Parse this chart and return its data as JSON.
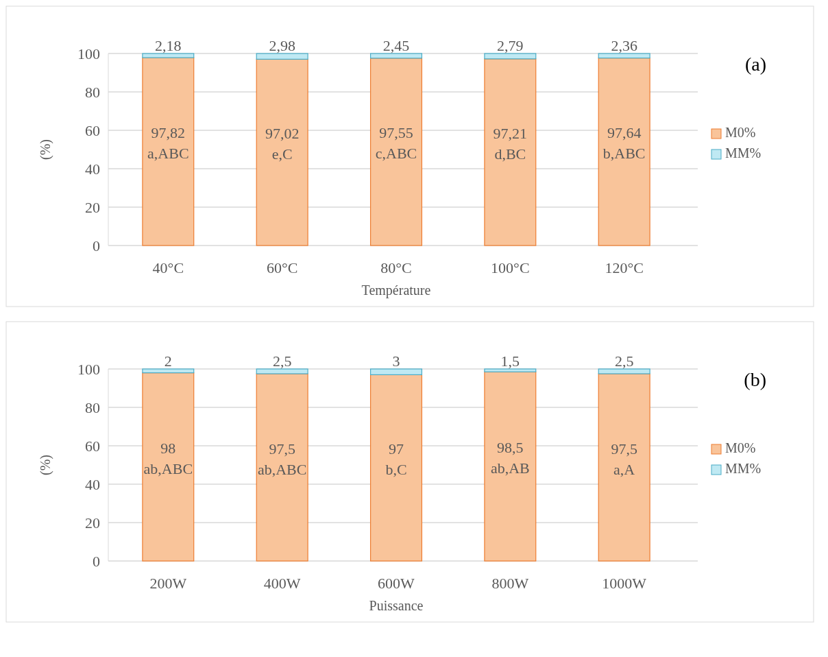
{
  "chart_data": [
    {
      "type": "bar",
      "annotations": [
        "(a)"
      ],
      "xlabel": "Température",
      "ylabel": "(%)",
      "categories": [
        "40°C",
        "60°C",
        "80°C",
        "100°C",
        "120°C"
      ],
      "stacked": true,
      "ylim": [
        0,
        100
      ],
      "yticks": [
        0,
        20,
        40,
        60,
        80,
        100
      ],
      "grid": "y",
      "legend": "right",
      "series": [
        {
          "name": "M0%",
          "color": "#f9c49a",
          "values": [
            97.82,
            97.02,
            97.55,
            97.21,
            97.64
          ],
          "value_labels": [
            "97,82\na,ABC",
            "97,02\ne,C",
            "97,55\nc,ABC",
            "97,21\nd,BC",
            "97,64\nb,ABC"
          ]
        },
        {
          "name": "MM%",
          "color": "#bfe9f3",
          "values": [
            2.18,
            2.98,
            2.45,
            2.79,
            2.36
          ],
          "value_labels": [
            "2,18",
            "2,98",
            "2,45",
            "2,79",
            "2,36"
          ]
        }
      ]
    },
    {
      "type": "bar",
      "annotations": [
        "(b)"
      ],
      "xlabel": "Puissance",
      "ylabel": "(%)",
      "categories": [
        "200W",
        "400W",
        "600W",
        "800W",
        "1000W"
      ],
      "stacked": true,
      "ylim": [
        0,
        100
      ],
      "yticks": [
        0,
        20,
        40,
        60,
        80,
        100
      ],
      "grid": "y",
      "legend": "right",
      "series": [
        {
          "name": "M0%",
          "color": "#f9c49a",
          "values": [
            98,
            97.5,
            97,
            98.5,
            97.5
          ],
          "value_labels": [
            "98\nab,ABC",
            "97,5\nab,ABC",
            "97\nb,C",
            "98,5\nab,AB",
            "97,5\na,A"
          ]
        },
        {
          "name": "MM%",
          "color": "#bfe9f3",
          "values": [
            2,
            2.5,
            3,
            1.5,
            2.5
          ],
          "value_labels": [
            "2",
            "2,5",
            "3",
            "1,5",
            "2,5"
          ]
        }
      ]
    }
  ]
}
